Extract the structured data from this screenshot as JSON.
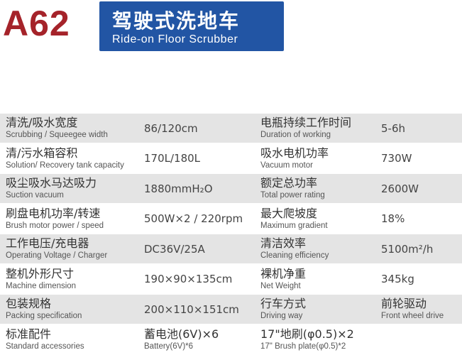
{
  "header": {
    "model": "A62",
    "title_zh": "驾驶式洗地车",
    "title_en": "Ride-on Floor Scrubber"
  },
  "table": {
    "rows": [
      [
        [
          "清洗/吸水宽度",
          "Scrubbing / Squeegee width"
        ],
        [
          "86/120cm"
        ],
        [
          "电瓶持续工作时间",
          "Duration of working"
        ],
        [
          "5-6h"
        ]
      ],
      [
        [
          "清/污水箱容积",
          "Solution/ Recovery tank capacity"
        ],
        [
          "170L/180L"
        ],
        [
          "吸水电机功率",
          "Vacuum motor"
        ],
        [
          "730W"
        ]
      ],
      [
        [
          "吸尘吸水马达吸力",
          "Suction vacuum"
        ],
        [
          "1880mmH₂O"
        ],
        [
          "额定总功率",
          "Total power rating"
        ],
        [
          "2600W"
        ]
      ],
      [
        [
          "刷盘电机功率/转速",
          "Brush motor power / speed"
        ],
        [
          "500W×2 / 220rpm"
        ],
        [
          "最大爬坡度",
          "Maximum gradient"
        ],
        [
          "18%"
        ]
      ],
      [
        [
          "工作电压/充电器",
          "Operating Voltage / Charger"
        ],
        [
          "DC36V/25A"
        ],
        [
          "清洁效率",
          "Cleaning efficiency"
        ],
        [
          "5100m²/h"
        ]
      ],
      [
        [
          "整机外形尺寸",
          "Machine dimension"
        ],
        [
          "190×90×135cm"
        ],
        [
          "裸机净重",
          "Net Weight"
        ],
        [
          "345kg"
        ]
      ],
      [
        [
          "包装规格",
          "Packing specification"
        ],
        [
          "200×110×151cm"
        ],
        [
          "行车方式",
          "Driving way"
        ],
        [
          "前轮驱动",
          "Front wheel drive"
        ]
      ],
      [
        [
          "标准配件",
          "Standard accessories"
        ],
        [
          "蓄电池(6V)×6",
          "Battery(6V)*6"
        ],
        [
          "17\"地刷(φ0.5)×2",
          "17\" Brush plate(φ0.5)*2"
        ],
        []
      ]
    ]
  }
}
